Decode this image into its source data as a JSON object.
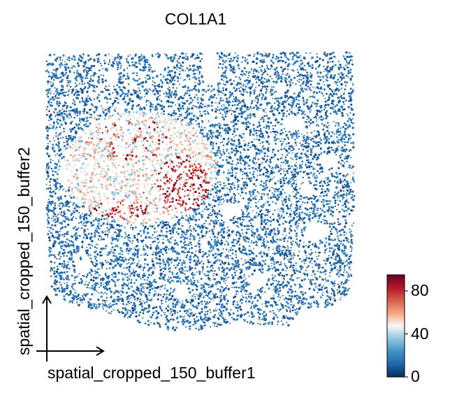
{
  "chart_data": {
    "type": "scatter",
    "plot_kind": "spatial embedding (cell-level scatter colored by expression)",
    "title": "COL1A1",
    "xlabel": "spatial_cropped_150_buffer1",
    "ylabel": "spatial_cropped_150_buffer2",
    "colorbar": {
      "colormap": "RdBu_r",
      "range": [
        0,
        95
      ],
      "ticks": [
        0,
        40,
        80
      ],
      "tick_labels": [
        "0",
        "40",
        "80"
      ],
      "colors": [
        "#053061",
        "#2166ac",
        "#4393c3",
        "#92c5de",
        "#f7f7f7",
        "#f4a582",
        "#d6604d",
        "#b2182b",
        "#67001f"
      ]
    },
    "axis_style": "arrows only, no ticks or grid",
    "grid": false,
    "high_expression_regions": [
      {
        "description": "left-center tissue band",
        "approx_value": 90
      },
      {
        "description": "center cluster",
        "approx_value": 95
      }
    ],
    "background_value": 5
  }
}
